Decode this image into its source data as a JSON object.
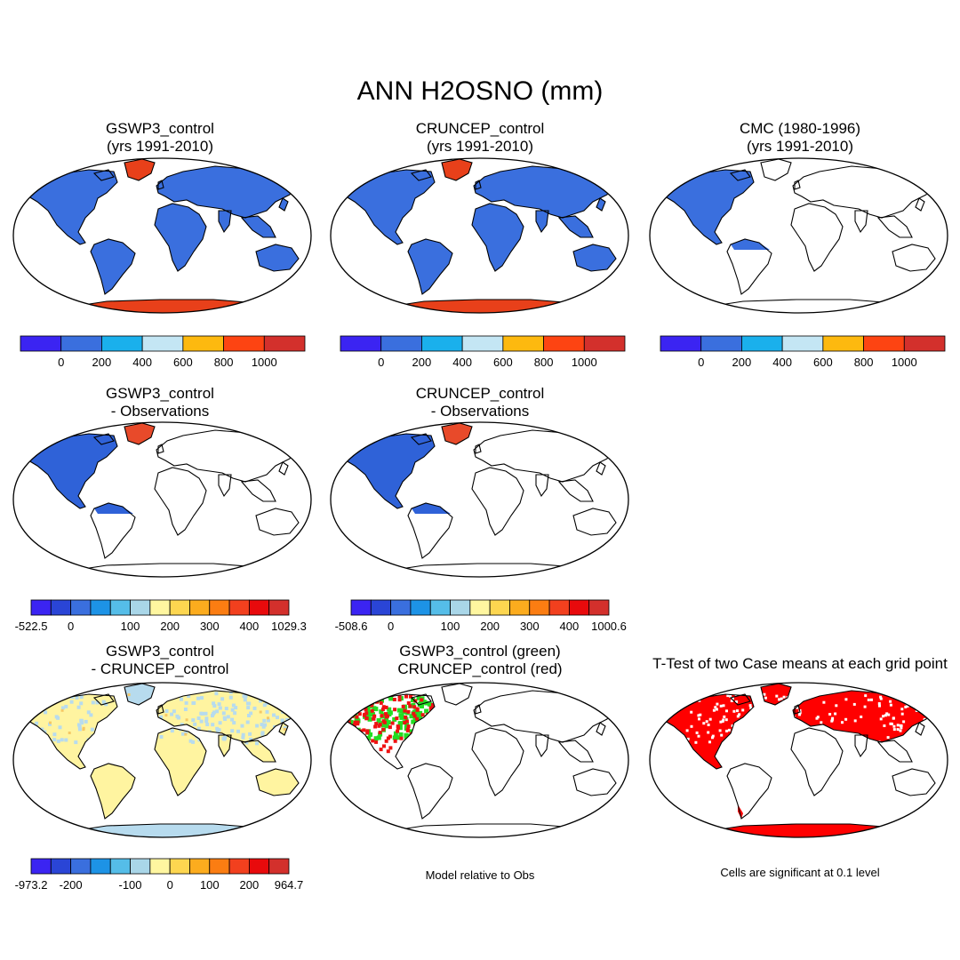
{
  "title": "ANN H2OSNO (mm)",
  "colors": {
    "ocean": "#ffffff",
    "land_outline": "#000000",
    "model_blue": "#3a6fde",
    "model_red": "#e8401a",
    "diff_blue": "#2f62d8",
    "diff_red": "#e84a2a",
    "diff_yellow": "#fff4a0",
    "diff_lightblue": "#b7dbee",
    "ttest_red": "#ff0000",
    "green": "#22dd22",
    "red": "#ee1111"
  },
  "panels": [
    {
      "id": "p1",
      "title_line1": "GSWP3_control",
      "title_line2": "(yrs 1991-2010)",
      "fill": "model_full"
    },
    {
      "id": "p2",
      "title_line1": "CRUNCEP_control",
      "title_line2": "(yrs 1991-2010)",
      "fill": "model_full"
    },
    {
      "id": "p3",
      "title_line1": "CMC (1980-1996)",
      "title_line2": "(yrs 1991-2010)",
      "fill": "obs_na"
    },
    {
      "id": "p4",
      "title_line1": "GSWP3_control",
      "title_line2": "- Observations",
      "fill": "diff_na"
    },
    {
      "id": "p5",
      "title_line1": "CRUNCEP_control",
      "title_line2": "- Observations",
      "fill": "diff_na"
    },
    {
      "id": "p7",
      "title_line1": "GSWP3_control",
      "title_line2": "- CRUNCEP_control",
      "fill": "model_diff"
    },
    {
      "id": "p8",
      "title_line1": "GSWP3_control (green)",
      "title_line2": "CRUNCEP_control (red)",
      "fill": "green_red"
    },
    {
      "id": "p9",
      "title_line1": "T-Test of two Case means at each grid point",
      "title_line2": "",
      "fill": "ttest"
    }
  ],
  "colorbars": [
    {
      "id": "cb1",
      "colors": [
        "#3b24f2",
        "#3a6fde",
        "#1ab0ec",
        "#c4e6f4",
        "#fdb90f",
        "#fd4412",
        "#d3302c"
      ],
      "labels": [
        "0",
        "200",
        "400",
        "600",
        "800",
        "1000"
      ]
    },
    {
      "id": "cb2",
      "colors": [
        "#3b24f2",
        "#3a6fde",
        "#1ab0ec",
        "#c4e6f4",
        "#fdb90f",
        "#fd4412",
        "#d3302c"
      ],
      "labels": [
        "0",
        "200",
        "400",
        "600",
        "800",
        "1000"
      ]
    },
    {
      "id": "cb3",
      "colors": [
        "#3b24f2",
        "#3a6fde",
        "#1ab0ec",
        "#c4e6f4",
        "#fdb90f",
        "#fd4412",
        "#d3302c"
      ],
      "labels": [
        "0",
        "200",
        "400",
        "600",
        "800",
        "1000"
      ]
    },
    {
      "id": "cb4",
      "colors": [
        "#3b24f2",
        "#2a45d6",
        "#3a6fde",
        "#1d93e6",
        "#55bde8",
        "#a9d6e8",
        "#fff6a0",
        "#fdd650",
        "#fcac1e",
        "#fb7d12",
        "#f2401e",
        "#e80a0c",
        "#d3302c"
      ],
      "labels": [
        "-522.5",
        "0",
        "100",
        "200",
        "300",
        "400",
        "1029.3"
      ]
    },
    {
      "id": "cb5",
      "colors": [
        "#3b24f2",
        "#2a45d6",
        "#3a6fde",
        "#1d93e6",
        "#55bde8",
        "#a9d6e8",
        "#fff6a0",
        "#fdd650",
        "#fcac1e",
        "#fb7d12",
        "#f2401e",
        "#e80a0c",
        "#d3302c"
      ],
      "labels": [
        "-508.6",
        "0",
        "100",
        "200",
        "300",
        "400",
        "1000.6"
      ]
    },
    {
      "id": "cb7",
      "colors": [
        "#3b24f2",
        "#2a45d6",
        "#3a6fde",
        "#1d93e6",
        "#55bde8",
        "#a9d6e8",
        "#fff6a0",
        "#fdd650",
        "#fcac1e",
        "#fb7d12",
        "#f2401e",
        "#e80a0c",
        "#d3302c"
      ],
      "labels": [
        "-973.2",
        "-200",
        "-100",
        "0",
        "100",
        "200",
        "964.7"
      ]
    }
  ],
  "notes": {
    "model_relative": "Model relative to Obs",
    "significance": "Cells are significant at 0.1 level"
  }
}
